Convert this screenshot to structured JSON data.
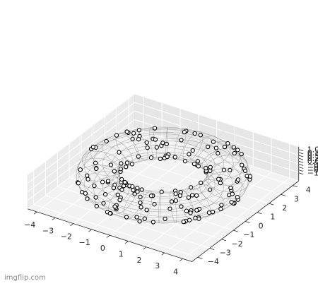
{
  "watermark": "imgflip.com",
  "chart_data": {
    "type": "scatter",
    "projection": "3d",
    "title": "",
    "xlabel": "",
    "ylabel": "",
    "zlabel": "",
    "xlim": [
      -4.5,
      4.5
    ],
    "ylim": [
      -4.5,
      4.5
    ],
    "zlim": [
      -1,
      1
    ],
    "x_ticks": [
      "−4",
      "−3",
      "−2",
      "−1",
      "0",
      "1",
      "2",
      "3",
      "4"
    ],
    "y_ticks": [
      "−4",
      "−3",
      "−2",
      "−1",
      "0",
      "1",
      "2",
      "3",
      "4"
    ],
    "z_ticks": [
      "−1.00",
      "−0.75",
      "−0.50",
      "−0.25",
      "0.00",
      "0.25",
      "0.50",
      "0.75",
      "1.00"
    ],
    "grid": true,
    "surface": {
      "shape": "torus",
      "major_radius": 3,
      "minor_radius": 1,
      "rendering": "wireframe",
      "wire_color": "#808080"
    },
    "points": {
      "marker": "o",
      "face_color": "#ffffff",
      "edge_color": "#000000",
      "approx_count": 180
    }
  }
}
